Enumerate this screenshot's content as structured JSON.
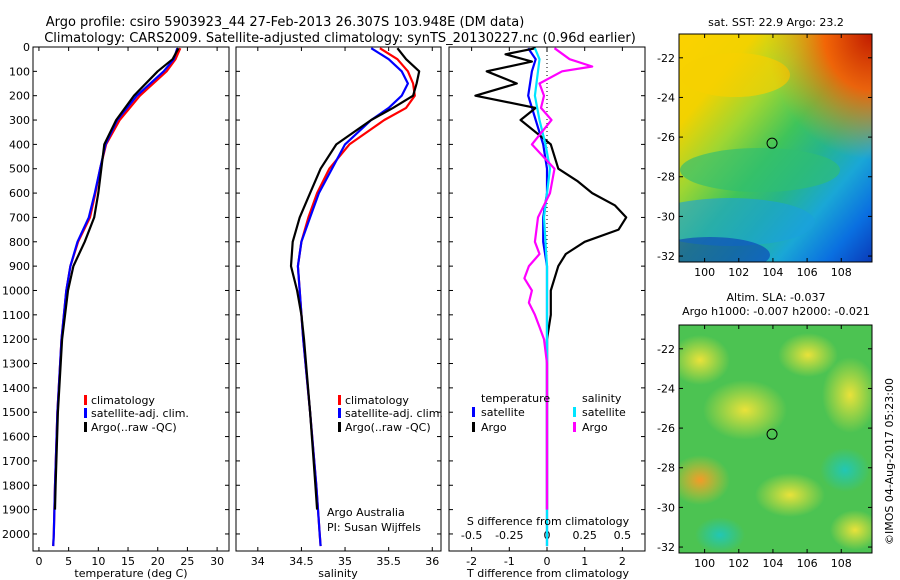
{
  "title_line1": "Argo profile: csiro 5903923_44 27-Feb-2013 26.307S 103.948E (DM data)",
  "title_line2": "Climatology: CARS2009. Satellite-adjusted climatology: synTS_20130227.nc (0.96d earlier)",
  "credit": "©IMOS 04-Aug-2017 05:23:00",
  "legend": {
    "climatology": "climatology",
    "satellite": "satellite-adj. clim.",
    "argo": "Argo(..raw -QC)"
  },
  "argo_info": {
    "line1": "Argo Australia",
    "line2": "PI: Susan Wijffels"
  },
  "diff_legend": {
    "temperature": "temperature",
    "salinity": "salinity",
    "satellite": "satellite",
    "argo": "Argo"
  },
  "colors": {
    "climatology": "#ff0000",
    "satellite": "#0000ff",
    "argo": "#000000",
    "salinity_satellite": "#00e5ff",
    "salinity_argo": "#ff00ff"
  },
  "chart_data": [
    {
      "type": "line",
      "name": "temperature-profile",
      "xlabel": "temperature (deg C)",
      "ylabel": "",
      "xlim": [
        -1,
        32
      ],
      "ylim": [
        2070,
        0
      ],
      "xticks": [
        0,
        5,
        10,
        15,
        20,
        25,
        30
      ],
      "yticks": [
        0,
        100,
        200,
        300,
        400,
        500,
        600,
        700,
        800,
        900,
        1000,
        1100,
        1200,
        1300,
        1400,
        1500,
        1600,
        1700,
        1800,
        1900,
        2000
      ],
      "series": [
        {
          "name": "climatology",
          "color": "#ff0000",
          "depth": [
            5,
            50,
            100,
            200,
            300,
            400,
            500,
            600,
            700,
            800,
            900,
            1000,
            1200,
            1500,
            1800,
            2000,
            2050
          ],
          "values": [
            23.8,
            23.0,
            21.5,
            17.0,
            13.6,
            11.3,
            10.3,
            9.5,
            8.6,
            6.6,
            5.3,
            4.6,
            3.8,
            3.1,
            2.7,
            2.5,
            2.4
          ]
        },
        {
          "name": "satellite-adj. clim.",
          "color": "#0000ff",
          "depth": [
            5,
            50,
            100,
            200,
            300,
            400,
            500,
            600,
            700,
            800,
            900,
            1000,
            1200,
            1500,
            1800,
            2000,
            2050
          ],
          "values": [
            23.3,
            22.7,
            21.0,
            16.5,
            13.2,
            11.2,
            10.3,
            9.4,
            8.4,
            6.5,
            5.3,
            4.6,
            3.8,
            3.1,
            2.7,
            2.5,
            2.4
          ]
        },
        {
          "name": "Argo(..raw -QC)",
          "color": "#000000",
          "depth": [
            5,
            50,
            100,
            200,
            300,
            400,
            500,
            600,
            700,
            800,
            900,
            1000,
            1200,
            1500,
            1800,
            1900
          ],
          "values": [
            23.5,
            22.5,
            20.0,
            16.0,
            13.0,
            11.0,
            10.5,
            10.0,
            9.3,
            7.7,
            5.8,
            4.9,
            3.9,
            3.2,
            2.8,
            2.7
          ]
        }
      ]
    },
    {
      "type": "line",
      "name": "salinity-profile",
      "xlabel": "salinity",
      "ylabel": "",
      "xlim": [
        33.75,
        36.1
      ],
      "ylim": [
        2070,
        0
      ],
      "xticks": [
        34,
        34.5,
        35,
        35.5,
        36
      ],
      "series": [
        {
          "name": "climatology",
          "color": "#ff0000",
          "depth": [
            5,
            50,
            100,
            150,
            200,
            250,
            300,
            400,
            500,
            600,
            700,
            800,
            900,
            1000,
            1200,
            1500,
            1800,
            2000,
            2050
          ],
          "values": [
            35.4,
            35.6,
            35.72,
            35.78,
            35.8,
            35.7,
            35.45,
            35.05,
            34.82,
            34.68,
            34.58,
            34.5,
            34.46,
            34.48,
            34.52,
            34.6,
            34.67,
            34.71,
            34.72
          ]
        },
        {
          "name": "satellite-adj. clim.",
          "color": "#0000ff",
          "depth": [
            5,
            50,
            100,
            150,
            200,
            250,
            300,
            400,
            500,
            600,
            700,
            800,
            900,
            1000,
            1200,
            1500,
            1800,
            2000,
            2050
          ],
          "values": [
            35.3,
            35.5,
            35.65,
            35.72,
            35.65,
            35.5,
            35.3,
            35.0,
            34.85,
            34.7,
            34.6,
            34.5,
            34.46,
            34.48,
            34.52,
            34.6,
            34.67,
            34.71,
            34.72
          ]
        },
        {
          "name": "Argo(..raw -QC)",
          "color": "#000000",
          "depth": [
            5,
            50,
            100,
            150,
            200,
            250,
            300,
            400,
            500,
            600,
            700,
            800,
            900,
            1000,
            1100,
            1200,
            1500,
            1800,
            1900
          ],
          "values": [
            35.6,
            35.7,
            35.85,
            35.82,
            35.78,
            35.55,
            35.3,
            34.9,
            34.72,
            34.6,
            34.48,
            34.4,
            34.38,
            34.45,
            34.5,
            34.53,
            34.6,
            34.66,
            34.68
          ]
        }
      ]
    },
    {
      "type": "line",
      "name": "difference-profile",
      "xlabel": "T difference from climatology",
      "x2label": "S difference from climatology",
      "xlim": [
        -2.6,
        2.6
      ],
      "ylim": [
        2070,
        0
      ],
      "xticks": [
        -2,
        -1,
        0,
        1,
        2
      ],
      "x2ticks": [
        -0.5,
        -0.25,
        0,
        0.25,
        0.5
      ],
      "x2tick_labels": [
        "-0.5",
        "-0.25",
        "0",
        "0.25",
        "0.5"
      ],
      "series": [
        {
          "name": "temperature satellite",
          "color": "#0000ff",
          "depth": [
            5,
            50,
            100,
            200,
            300,
            400,
            500,
            600,
            700,
            800,
            900,
            1000,
            1200,
            1500,
            1800,
            2050
          ],
          "values": [
            -0.5,
            -0.3,
            -0.4,
            -0.5,
            -0.3,
            -0.1,
            0.0,
            0.0,
            -0.1,
            -0.1,
            0.0,
            0.0,
            0.0,
            0.0,
            0.0,
            0.0
          ]
        },
        {
          "name": "temperature Argo",
          "color": "#000000",
          "depth": [
            5,
            30,
            60,
            100,
            150,
            200,
            250,
            300,
            400,
            500,
            550,
            600,
            650,
            700,
            750,
            800,
            850,
            900,
            1000,
            1100,
            1200,
            1500,
            1800,
            1900
          ],
          "values": [
            -0.3,
            -1.1,
            -0.4,
            -1.6,
            -0.8,
            -1.9,
            -0.3,
            -0.7,
            0.1,
            0.3,
            0.8,
            1.2,
            1.8,
            2.1,
            1.9,
            1.0,
            0.5,
            0.3,
            0.1,
            0.1,
            0.0,
            0.0,
            0.0,
            0.0
          ]
        },
        {
          "name": "salinity satellite",
          "color": "#00e5ff",
          "depth": [
            5,
            50,
            100,
            200,
            300,
            400,
            500,
            600,
            700,
            800,
            900,
            1000,
            1200,
            1500,
            1800,
            2050
          ],
          "values": [
            -0.08,
            -0.05,
            -0.06,
            -0.08,
            -0.05,
            -0.01,
            0.02,
            0.0,
            -0.02,
            -0.01,
            0.0,
            0.0,
            0.0,
            0.0,
            0.0,
            0.0
          ]
        },
        {
          "name": "salinity Argo",
          "color": "#ff00ff",
          "depth": [
            5,
            50,
            80,
            100,
            150,
            200,
            250,
            300,
            400,
            500,
            600,
            700,
            800,
            850,
            900,
            950,
            1000,
            1050,
            1100,
            1150,
            1200,
            1300,
            1500,
            1800,
            1900
          ],
          "values": [
            0.05,
            0.15,
            0.3,
            0.1,
            -0.05,
            -0.02,
            -0.04,
            0.03,
            -0.1,
            0.05,
            0.02,
            -0.06,
            -0.08,
            -0.05,
            -0.12,
            -0.15,
            -0.1,
            -0.12,
            -0.08,
            -0.05,
            -0.02,
            0.0,
            0.0,
            0.0,
            0.0
          ]
        }
      ]
    },
    {
      "type": "heatmap",
      "name": "sst-map",
      "title": "sat. SST: 22.9 Argo: 23.2",
      "xlim": [
        98.5,
        109.8
      ],
      "ylim": [
        -32.3,
        -20.8
      ],
      "xticks": [
        100,
        102,
        104,
        106,
        108
      ],
      "yticks": [
        -22,
        -24,
        -26,
        -28,
        -30,
        -32
      ],
      "marker": {
        "lon": 103.948,
        "lat": -26.307
      }
    },
    {
      "type": "heatmap",
      "name": "sla-map",
      "title1": "Altim. SLA: -0.037",
      "title2": "Argo h1000: -0.007 h2000: -0.021",
      "xlim": [
        98.5,
        109.8
      ],
      "ylim": [
        -32.3,
        -20.8
      ],
      "xticks": [
        100,
        102,
        104,
        106,
        108
      ],
      "yticks": [
        -22,
        -24,
        -26,
        -28,
        -30,
        -32
      ],
      "marker": {
        "lon": 103.948,
        "lat": -26.307
      }
    }
  ]
}
